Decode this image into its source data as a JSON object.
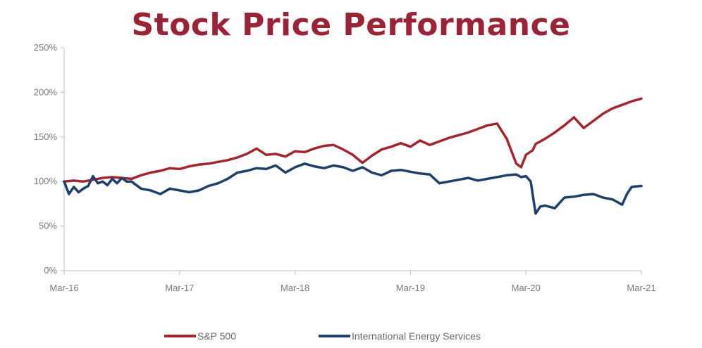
{
  "chart_data": {
    "type": "line",
    "title": "Stock Price Performance",
    "xlabel": "",
    "ylabel": "",
    "x_ticks": [
      "Mar-16",
      "Mar-17",
      "Mar-18",
      "Mar-19",
      "Mar-20",
      "Mar-21"
    ],
    "y_ticks": [
      "0%",
      "50%",
      "100%",
      "150%",
      "200%",
      "250%"
    ],
    "ylim": [
      0,
      250
    ],
    "xlim": [
      0,
      60
    ],
    "grid": false,
    "legend_position": "bottom",
    "title_color": "#9b2335",
    "series": [
      {
        "name": "S&P 500",
        "color": "#a3262e",
        "x": [
          0,
          1,
          2,
          3,
          4,
          5,
          6,
          7,
          8,
          9,
          10,
          11,
          12,
          13,
          14,
          15,
          16,
          17,
          18,
          19,
          20,
          21,
          22,
          23,
          24,
          25,
          26,
          27,
          28,
          29,
          30,
          31,
          32,
          33,
          34,
          35,
          36,
          37,
          38,
          39,
          40,
          41,
          42,
          43,
          44,
          45,
          46,
          47,
          47.5,
          48,
          48.7,
          49,
          50,
          51,
          52,
          53,
          54,
          55,
          56,
          57,
          58,
          59,
          60
        ],
        "y": [
          100,
          101,
          100,
          102,
          104,
          105,
          104,
          103,
          107,
          110,
          112,
          115,
          114,
          117,
          119,
          120,
          122,
          124,
          127,
          131,
          137,
          130,
          131,
          128,
          134,
          133,
          137,
          140,
          141,
          136,
          130,
          121,
          129,
          136,
          139,
          143,
          139,
          146,
          141,
          145,
          149,
          152,
          155,
          159,
          163,
          165,
          148,
          120,
          116,
          130,
          135,
          142,
          148,
          155,
          163,
          172,
          160,
          168,
          176,
          182,
          186,
          190,
          193
        ]
      },
      {
        "name": "International Energy Services",
        "color": "#1f3f6b",
        "x": [
          0,
          0.5,
          1,
          1.5,
          2,
          2.5,
          3,
          3.5,
          4,
          4.5,
          5,
          5.5,
          6,
          6.5,
          7,
          7.5,
          8,
          9,
          10,
          11,
          12,
          13,
          14,
          15,
          16,
          17,
          18,
          19,
          20,
          21,
          22,
          23,
          24,
          25,
          26,
          27,
          28,
          29,
          30,
          31,
          32,
          33,
          34,
          35,
          36,
          37,
          38,
          39,
          40,
          41,
          42,
          43,
          44,
          45,
          46,
          47,
          47.5,
          48,
          48.5,
          49,
          49.5,
          50,
          51,
          52,
          53,
          54,
          55,
          56,
          57,
          58,
          58.5,
          59,
          60
        ],
        "y": [
          100,
          86,
          94,
          88,
          92,
          95,
          106,
          98,
          100,
          96,
          103,
          98,
          104,
          100,
          100,
          96,
          92,
          90,
          86,
          92,
          90,
          88,
          90,
          95,
          98,
          103,
          110,
          112,
          115,
          114,
          118,
          110,
          116,
          120,
          117,
          115,
          118,
          116,
          112,
          116,
          110,
          107,
          112,
          113,
          111,
          109,
          108,
          98,
          100,
          102,
          104,
          101,
          103,
          105,
          107,
          108,
          105,
          106,
          100,
          64,
          72,
          73,
          70,
          82,
          83,
          85,
          86,
          82,
          80,
          74,
          86,
          94,
          95
        ]
      }
    ]
  }
}
